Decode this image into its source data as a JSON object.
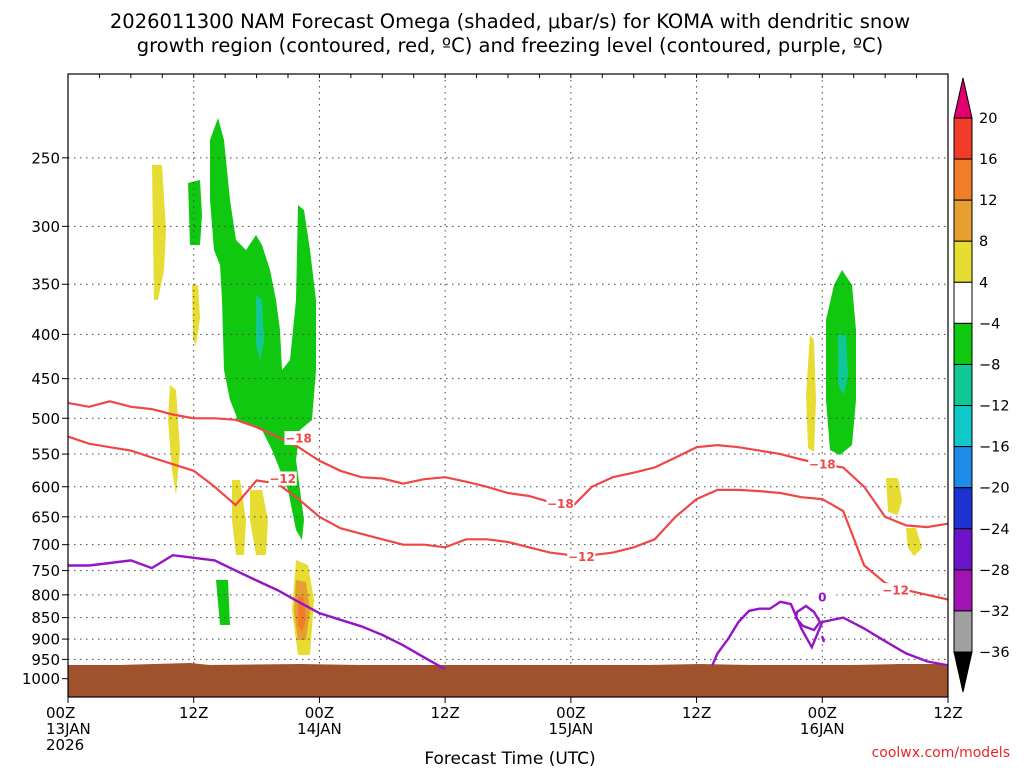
{
  "chart_data": {
    "type": "heatmap",
    "title_line1": "2026011300 NAM Forecast Omega (shaded, μbar/s) for KOMA with dendritic snow",
    "title_line2": "growth region (contoured, red, ºC) and freezing level (contoured, purple, ºC)",
    "xlabel": "Forecast Time (UTC)",
    "credit": "coolwx.com/models",
    "x_ticks": [
      {
        "hour": 0,
        "line1": "00Z",
        "line2": "13JAN",
        "line3": "2026"
      },
      {
        "hour": 12,
        "line1": "12Z",
        "line2": "",
        "line3": ""
      },
      {
        "hour": 24,
        "line1": "00Z",
        "line2": "14JAN",
        "line3": ""
      },
      {
        "hour": 36,
        "line1": "12Z",
        "line2": "",
        "line3": ""
      },
      {
        "hour": 48,
        "line1": "00Z",
        "line2": "15JAN",
        "line3": ""
      },
      {
        "hour": 60,
        "line1": "12Z",
        "line2": "",
        "line3": ""
      },
      {
        "hour": 72,
        "line1": "00Z",
        "line2": "16JAN",
        "line3": ""
      },
      {
        "hour": 84,
        "line1": "12Z",
        "line2": "",
        "line3": ""
      }
    ],
    "xlim": [
      0,
      84
    ],
    "y_ticks": [
      250,
      300,
      350,
      400,
      450,
      500,
      550,
      600,
      650,
      700,
      750,
      800,
      850,
      900,
      950,
      1000
    ],
    "ylim": [
      1050,
      200
    ],
    "y_scale": "log-pressure",
    "grid": true,
    "colorbar": {
      "labels": [
        "20",
        "16",
        "12",
        "8",
        "4",
        "−4",
        "−8",
        "−12",
        "−16",
        "−20",
        "−24",
        "−28",
        "−32",
        "−36"
      ],
      "colors": [
        "#e2006e",
        "#f03c28",
        "#f07d28",
        "#e6a032",
        "#e6dc32",
        "#ffffff",
        "#11c811",
        "#10c896",
        "#10c8c8",
        "#1e8ce6",
        "#1e32d2",
        "#6e14c8",
        "#a014b4",
        "#a0a0a0",
        "#000000"
      ]
    },
    "colors": {
      "dgz": "#f04646",
      "freezing": "#9614c8",
      "ground": "#a0522d"
    },
    "contour_labels": [
      {
        "text": "−18",
        "hour": 22.0,
        "pressure": 527,
        "color": "#f04646"
      },
      {
        "text": "−12",
        "hour": 20.5,
        "pressure": 587,
        "color": "#f04646"
      },
      {
        "text": "−18",
        "hour": 47.0,
        "pressure": 627,
        "color": "#f04646"
      },
      {
        "text": "−12",
        "hour": 49.0,
        "pressure": 722,
        "color": "#f04646"
      },
      {
        "text": "−18",
        "hour": 72.0,
        "pressure": 565,
        "color": "#f04646"
      },
      {
        "text": "−12",
        "hour": 79.0,
        "pressure": 790,
        "color": "#f04646"
      },
      {
        "text": "0",
        "hour": 72.0,
        "pressure": 805,
        "color": "#9614c8"
      }
    ],
    "series": [
      {
        "kind": "dgz_upper",
        "x": [
          0,
          2,
          4,
          6,
          8,
          10,
          12,
          14,
          16,
          18,
          20,
          22,
          24,
          26,
          28,
          30,
          32,
          34,
          36,
          38,
          40,
          42,
          44,
          46,
          48,
          50,
          52,
          54,
          56,
          58,
          60,
          62,
          64,
          66,
          68,
          70,
          72,
          74,
          76,
          78,
          80,
          82,
          84
        ],
        "y": [
          480,
          485,
          478,
          485,
          488,
          495,
          500,
          500,
          502,
          512,
          525,
          540,
          560,
          575,
          585,
          587,
          595,
          588,
          585,
          592,
          600,
          610,
          615,
          625,
          635,
          600,
          585,
          578,
          570,
          555,
          540,
          537,
          540,
          545,
          550,
          558,
          565,
          570,
          600,
          650,
          665,
          668,
          662
        ]
      },
      {
        "kind": "dgz_lower",
        "x": [
          0,
          2,
          4,
          6,
          8,
          10,
          12,
          14,
          16,
          18,
          20,
          22,
          24,
          26,
          28,
          30,
          32,
          34,
          36,
          38,
          40,
          42,
          44,
          46,
          48,
          50,
          52,
          54,
          56,
          58,
          60,
          62,
          64,
          66,
          68,
          70,
          72,
          74,
          76,
          78,
          80,
          82,
          84
        ],
        "y": [
          525,
          535,
          540,
          545,
          555,
          565,
          575,
          600,
          630,
          590,
          595,
          620,
          650,
          670,
          680,
          690,
          700,
          700,
          705,
          690,
          690,
          695,
          705,
          715,
          720,
          720,
          715,
          705,
          690,
          650,
          620,
          605,
          605,
          607,
          610,
          617,
          620,
          640,
          740,
          775,
          790,
          800,
          810
        ]
      },
      {
        "kind": "freezing",
        "x": [
          0,
          2,
          4,
          6,
          8,
          10,
          12,
          14,
          16,
          18,
          20,
          22,
          24,
          26,
          28,
          30,
          32,
          34,
          36
        ],
        "y": [
          740,
          740,
          735,
          730,
          745,
          720,
          725,
          730,
          750,
          770,
          790,
          815,
          840,
          855,
          870,
          890,
          915,
          945,
          975
        ]
      },
      {
        "kind": "freezing_low",
        "x": [
          61.5,
          62,
          63,
          64,
          65,
          66,
          67,
          68,
          69,
          70,
          71,
          72,
          74,
          76,
          78,
          80,
          82,
          84
        ],
        "y": [
          965,
          935,
          900,
          860,
          835,
          830,
          830,
          815,
          820,
          875,
          920,
          860,
          850,
          875,
          905,
          935,
          955,
          965
        ]
      }
    ]
  }
}
